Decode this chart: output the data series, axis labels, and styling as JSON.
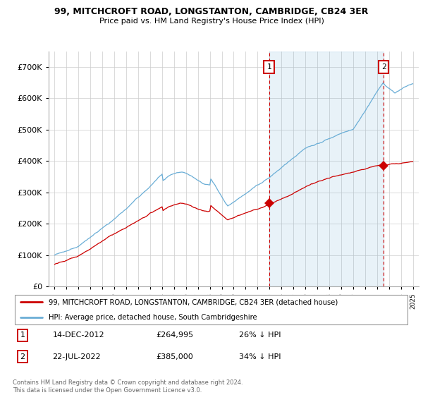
{
  "title": "99, MITCHCROFT ROAD, LONGSTANTON, CAMBRIDGE, CB24 3ER",
  "subtitle": "Price paid vs. HM Land Registry's House Price Index (HPI)",
  "legend_line1": "99, MITCHCROFT ROAD, LONGSTANTON, CAMBRIDGE, CB24 3ER (detached house)",
  "legend_line2": "HPI: Average price, detached house, South Cambridgeshire",
  "annotation1_date": "14-DEC-2012",
  "annotation1_price": "£264,995",
  "annotation1_pct": "26% ↓ HPI",
  "annotation2_date": "22-JUL-2022",
  "annotation2_price": "£385,000",
  "annotation2_pct": "34% ↓ HPI",
  "footer": "Contains HM Land Registry data © Crown copyright and database right 2024.\nThis data is licensed under the Open Government Licence v3.0.",
  "sale1_year": 2012.96,
  "sale1_price": 264995,
  "sale2_year": 2022.55,
  "sale2_price": 385000,
  "hpi_color": "#6baed6",
  "hpi_shade_color": "#ddeeff",
  "price_color": "#cc0000",
  "dashed_color": "#cc0000",
  "background_color": "#ffffff",
  "grid_color": "#cccccc",
  "ylim": [
    0,
    750000
  ],
  "yticks": [
    0,
    100000,
    200000,
    300000,
    400000,
    500000,
    600000,
    700000
  ],
  "xlim_start": 1994.5,
  "xlim_end": 2025.5
}
